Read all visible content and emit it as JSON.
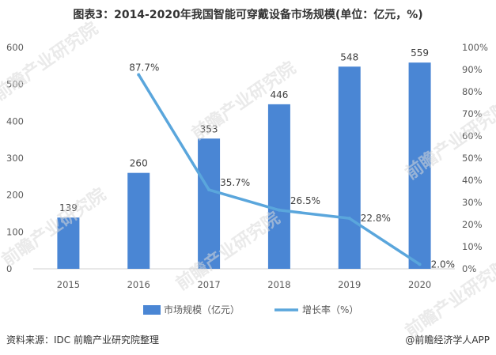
{
  "title": "图表3：2014-2020年我国智能可穿戴设备市场规模(单位：亿元，%)",
  "chart_data": {
    "type": "bar+line",
    "categories": [
      "2015",
      "2016",
      "2017",
      "2018",
      "2019",
      "2020"
    ],
    "series": [
      {
        "name": "市场规模（亿元）",
        "type": "bar",
        "axis": "left",
        "values": [
          139,
          260,
          353,
          446,
          548,
          559
        ],
        "color": "#4a86d4"
      },
      {
        "name": "增长率（%）",
        "type": "line",
        "axis": "right",
        "values": [
          null,
          87.7,
          35.7,
          26.5,
          22.8,
          2.0
        ],
        "color": "#5aa6dc"
      }
    ],
    "y_left": {
      "ylim": [
        0,
        600
      ],
      "ticks": [
        "0",
        "100",
        "200",
        "300",
        "400",
        "500",
        "600"
      ]
    },
    "y_right": {
      "ylim": [
        0,
        100
      ],
      "ticks": [
        "0%",
        "10%",
        "20%",
        "30%",
        "40%",
        "50%",
        "60%",
        "70%",
        "80%",
        "90%",
        "100%"
      ]
    },
    "line_labels": [
      "87.7%",
      "35.7%",
      "26.5%",
      "22.8%",
      "2.0%"
    ],
    "grid": false,
    "legend_position": "bottom"
  },
  "footer": {
    "source": "资料来源：IDC 前瞻产业研究院整理",
    "brand": "@前瞻经济学人APP"
  },
  "watermark": "前瞻产业研究院"
}
